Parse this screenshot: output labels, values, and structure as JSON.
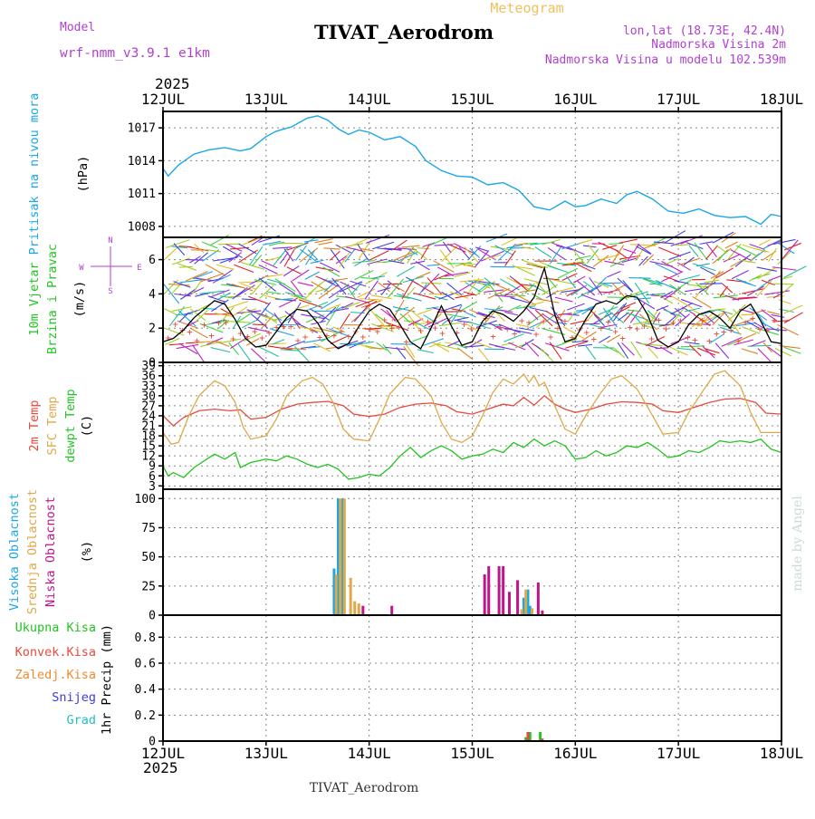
{
  "header": {
    "model_label": "Model",
    "model_name": "wrf-nmm_v3.9.1  e1km",
    "title": "TIVAT_Aerodrom",
    "meteogram_label": "Meteogram",
    "lonlat": "lon,lat (18.73E, 42.4N)",
    "elevation": "Nadmorska Visina 2m",
    "model_elevation": "Nadmorska Visina u modelu 102.539m",
    "year_top": "2025",
    "year_bottom": "2025",
    "footer_station": "TIVAT_Aerodrom",
    "watermark": "made by Angel"
  },
  "colors": {
    "pressure": "#1aa7e8",
    "temp2m": "#e84a3c",
    "sfc_temp": "#e0a848",
    "dewpoint": "#22c422",
    "wind_speed": "#000000",
    "gust_marks": "#e84a3c",
    "high_cloud": "#1aa7e8",
    "mid_cloud": "#e0a848",
    "low_cloud": "#c0148a",
    "total_precip": "#22c422",
    "conv_precip": "#e84a3c",
    "snow": "#3a3ae8",
    "graupel": "#20c0c0",
    "frozen_precip": "#f08a30",
    "header_purple": "#b040d0"
  },
  "chart_data": [
    {
      "type": "line",
      "panel": "pressure",
      "ylabel_left": "Pritisak na nivou mora",
      "ylabel_unit": "(hPa)",
      "x_days": [
        "12JUL",
        "13JUL",
        "14JUL",
        "15JUL",
        "16JUL",
        "17JUL",
        "18JUL"
      ],
      "y_ticks": [
        1008,
        1011,
        1014,
        1017
      ],
      "ylim": [
        1007,
        1018.5
      ],
      "grid": true,
      "series": [
        {
          "name": "Pritisak na nivou mora",
          "x": [
            0,
            0.05,
            0.15,
            0.3,
            0.45,
            0.6,
            0.75,
            0.85,
            1.0,
            1.1,
            1.25,
            1.4,
            1.5,
            1.6,
            1.7,
            1.8,
            1.9,
            2.0,
            2.15,
            2.3,
            2.45,
            2.55,
            2.7,
            2.85,
            3.0,
            3.15,
            3.3,
            3.45,
            3.6,
            3.75,
            3.9,
            4.0,
            4.1,
            4.25,
            4.4,
            4.5,
            4.6,
            4.75,
            4.9,
            5.05,
            5.2,
            5.35,
            5.5,
            5.65,
            5.8,
            5.9,
            6.0
          ],
          "values": [
            1013.3,
            1012.6,
            1013.6,
            1014.6,
            1015.0,
            1015.2,
            1014.9,
            1015.1,
            1016.2,
            1016.7,
            1017.1,
            1017.9,
            1018.1,
            1017.7,
            1016.9,
            1016.4,
            1016.8,
            1016.6,
            1015.9,
            1016.2,
            1015.3,
            1014.0,
            1013.1,
            1012.6,
            1012.5,
            1011.8,
            1012.0,
            1011.3,
            1009.8,
            1009.5,
            1010.3,
            1009.8,
            1009.9,
            1010.5,
            1010.1,
            1010.9,
            1011.2,
            1010.5,
            1009.4,
            1009.2,
            1009.6,
            1009.0,
            1008.8,
            1008.9,
            1008.2,
            1009.1,
            1008.9
          ]
        }
      ]
    },
    {
      "type": "line",
      "panel": "wind",
      "ylabel_left": "10m Vjetar",
      "ylabel_left2": "Brzina i Pravac",
      "ylabel_unit": "(m/s)",
      "compass": {
        "n": "N",
        "s": "S",
        "e": "E",
        "w": "W"
      },
      "y_ticks": [
        0,
        2,
        4,
        6
      ],
      "ylim": [
        0,
        7.3
      ],
      "grid": true,
      "series": [
        {
          "name": "Brzina",
          "x": [
            0,
            0.1,
            0.2,
            0.3,
            0.4,
            0.5,
            0.6,
            0.7,
            0.8,
            0.9,
            1.0,
            1.1,
            1.2,
            1.3,
            1.4,
            1.5,
            1.6,
            1.7,
            1.8,
            1.9,
            2.0,
            2.1,
            2.2,
            2.3,
            2.4,
            2.5,
            2.6,
            2.7,
            2.8,
            2.9,
            3.0,
            3.1,
            3.2,
            3.3,
            3.4,
            3.5,
            3.6,
            3.7,
            3.8,
            3.9,
            4.0,
            4.1,
            4.2,
            4.3,
            4.4,
            4.5,
            4.6,
            4.7,
            4.8,
            4.9,
            5.0,
            5.1,
            5.2,
            5.3,
            5.4,
            5.5,
            5.6,
            5.7,
            5.8,
            5.9,
            6.0
          ],
          "values": [
            1.2,
            1.4,
            1.9,
            2.6,
            3.1,
            3.6,
            3.4,
            2.5,
            1.4,
            0.9,
            1.0,
            1.8,
            2.6,
            3.1,
            3.0,
            2.3,
            1.3,
            0.8,
            1.1,
            2.1,
            3.0,
            3.4,
            3.1,
            2.2,
            1.2,
            0.8,
            2.0,
            3.3,
            2.1,
            1.0,
            1.2,
            2.4,
            3.0,
            2.8,
            2.4,
            3.0,
            3.8,
            5.5,
            2.8,
            1.2,
            1.4,
            2.5,
            3.4,
            3.6,
            3.4,
            3.9,
            3.8,
            2.8,
            1.3,
            0.9,
            1.2,
            2.2,
            2.8,
            3.0,
            2.6,
            2.0,
            3.0,
            3.4,
            2.4,
            1.2,
            1.1
          ]
        }
      ]
    },
    {
      "type": "line",
      "panel": "temperature",
      "ylabel_left": "2m Temp",
      "ylabel_left2": "SFC Temp",
      "ylabel_left3": "dewpt Temp",
      "ylabel_unit": "(C)",
      "y_ticks": [
        3,
        6,
        9,
        12,
        15,
        18,
        21,
        24,
        27,
        30,
        33,
        36,
        39
      ],
      "ylim": [
        2,
        40
      ],
      "grid": true,
      "series": [
        {
          "name": "2m Temp",
          "x": [
            0,
            0.1,
            0.2,
            0.35,
            0.5,
            0.65,
            0.75,
            0.85,
            1.0,
            1.15,
            1.3,
            1.45,
            1.6,
            1.75,
            1.85,
            2.0,
            2.15,
            2.3,
            2.45,
            2.6,
            2.75,
            2.85,
            3.0,
            3.15,
            3.3,
            3.4,
            3.5,
            3.6,
            3.7,
            3.8,
            3.9,
            4.0,
            4.15,
            4.3,
            4.45,
            4.6,
            4.75,
            4.85,
            5.0,
            5.15,
            5.3,
            5.45,
            5.6,
            5.75,
            5.85,
            6.0
          ],
          "values": [
            24.0,
            21.0,
            23.5,
            25.5,
            26.0,
            25.5,
            25.8,
            23.0,
            23.5,
            26.0,
            27.5,
            28.0,
            28.3,
            27.0,
            24.5,
            23.8,
            24.5,
            26.5,
            27.5,
            27.8,
            27.0,
            25.2,
            24.5,
            26.0,
            27.5,
            27.0,
            29.5,
            27.2,
            30.0,
            27.5,
            26.0,
            25.0,
            26.0,
            27.5,
            28.2,
            28.0,
            27.5,
            25.5,
            25.0,
            26.5,
            28.0,
            29.0,
            29.2,
            28.0,
            24.8,
            24.5
          ]
        },
        {
          "name": "SFC Temp",
          "x": [
            0,
            0.08,
            0.15,
            0.25,
            0.35,
            0.5,
            0.6,
            0.7,
            0.78,
            0.85,
            1.0,
            1.1,
            1.2,
            1.35,
            1.45,
            1.55,
            1.65,
            1.75,
            1.85,
            2.0,
            2.1,
            2.2,
            2.35,
            2.45,
            2.6,
            2.7,
            2.8,
            2.9,
            3.0,
            3.1,
            3.2,
            3.3,
            3.4,
            3.5,
            3.55,
            3.6,
            3.65,
            3.7,
            3.8,
            3.9,
            4.0,
            4.1,
            4.25,
            4.35,
            4.45,
            4.6,
            4.75,
            4.85,
            5.0,
            5.1,
            5.25,
            5.35,
            5.45,
            5.6,
            5.7,
            5.8,
            6.0
          ],
          "values": [
            19.0,
            15.5,
            16.0,
            24.0,
            30.0,
            34.5,
            33.0,
            28.0,
            20.5,
            17.0,
            18.0,
            23.0,
            30.0,
            34.5,
            35.5,
            33.5,
            28.0,
            20.0,
            17.0,
            16.5,
            23.0,
            30.5,
            35.5,
            35.0,
            30.0,
            22.0,
            17.0,
            16.0,
            18.0,
            24.0,
            31.0,
            35.0,
            33.5,
            36.5,
            34.0,
            36.0,
            33.0,
            34.0,
            27.0,
            20.0,
            18.5,
            24.0,
            31.0,
            35.0,
            36.0,
            32.0,
            24.0,
            18.5,
            19.0,
            25.0,
            32.0,
            36.5,
            37.5,
            33.0,
            25.0,
            19.0,
            19.0
          ]
        },
        {
          "name": "dewpt Temp",
          "x": [
            0,
            0.05,
            0.1,
            0.2,
            0.3,
            0.4,
            0.5,
            0.6,
            0.7,
            0.75,
            0.85,
            1.0,
            1.1,
            1.2,
            1.3,
            1.4,
            1.5,
            1.6,
            1.7,
            1.8,
            1.9,
            2.0,
            2.1,
            2.2,
            2.3,
            2.4,
            2.5,
            2.6,
            2.7,
            2.8,
            2.9,
            3.0,
            3.1,
            3.2,
            3.3,
            3.4,
            3.5,
            3.6,
            3.7,
            3.8,
            3.9,
            4.0,
            4.1,
            4.2,
            4.3,
            4.4,
            4.5,
            4.6,
            4.7,
            4.8,
            4.9,
            5.0,
            5.1,
            5.2,
            5.3,
            5.4,
            5.5,
            5.6,
            5.7,
            5.8,
            5.9,
            6.0
          ],
          "values": [
            9.0,
            6.0,
            7.0,
            5.5,
            8.5,
            10.5,
            12.5,
            11.0,
            13.0,
            8.5,
            10.0,
            11.0,
            10.5,
            12.0,
            11.0,
            9.5,
            8.5,
            9.5,
            8.0,
            5.0,
            5.5,
            6.5,
            6.0,
            8.5,
            12.0,
            14.5,
            11.5,
            13.5,
            15.0,
            13.5,
            11.0,
            12.0,
            12.5,
            14.0,
            13.0,
            16.0,
            14.5,
            17.0,
            15.0,
            16.5,
            15.0,
            11.0,
            11.5,
            13.5,
            12.0,
            13.0,
            15.0,
            14.5,
            16.0,
            14.0,
            11.5,
            12.0,
            13.5,
            13.0,
            14.5,
            16.5,
            16.0,
            16.5,
            16.0,
            17.0,
            14.0,
            13.0
          ]
        }
      ]
    },
    {
      "type": "bar",
      "panel": "cloud",
      "ylabel_left": "Visoka Oblacnost",
      "ylabel_left2": "Srednja Oblacnost",
      "ylabel_left3": "Niska  Oblacnost",
      "ylabel_unit": "(%)",
      "y_ticks": [
        0,
        25,
        50,
        75,
        100
      ],
      "ylim": [
        0,
        108
      ],
      "grid": true,
      "series": [
        {
          "name": "Visoka Oblacnost",
          "x": [
            1.66,
            1.7,
            1.74,
            3.5,
            3.54,
            3.56
          ],
          "values": [
            40,
            100,
            100,
            15,
            22,
            8
          ]
        },
        {
          "name": "Srednja Oblacnost",
          "x": [
            1.68,
            1.72,
            1.76,
            1.82,
            1.86,
            1.9,
            3.48,
            3.52,
            3.58
          ],
          "values": [
            35,
            100,
            100,
            32,
            12,
            10,
            5,
            22,
            6
          ]
        },
        {
          "name": "Niska  Oblacnost",
          "x": [
            1.94,
            2.22,
            3.12,
            3.16,
            3.26,
            3.3,
            3.36,
            3.44,
            3.64,
            3.68
          ],
          "values": [
            8,
            8,
            35,
            42,
            42,
            42,
            20,
            30,
            28,
            4
          ]
        }
      ]
    },
    {
      "type": "bar",
      "panel": "precip",
      "ylabel_left": "Ukupna  Kisa",
      "ylabel_left2": "Konvek.Kisa",
      "ylabel_left3": "Zaledj.Kisa",
      "ylabel_left4": "Snijeg",
      "ylabel_left5": "Grad",
      "ylabel_unit": "1hr Precip (mm)",
      "y_ticks": [
        0,
        0.2,
        0.4,
        0.6,
        0.8
      ],
      "ylim": [
        0,
        0.97
      ],
      "grid": true,
      "series": [
        {
          "name": "Ukupna  Kisa",
          "x": [
            3.52,
            3.56,
            3.66
          ],
          "values": [
            0.03,
            0.07,
            0.07
          ]
        },
        {
          "name": "Konvek.Kisa",
          "x": [
            3.54,
            3.68
          ],
          "values": [
            0.07,
            0.02
          ]
        }
      ]
    }
  ]
}
